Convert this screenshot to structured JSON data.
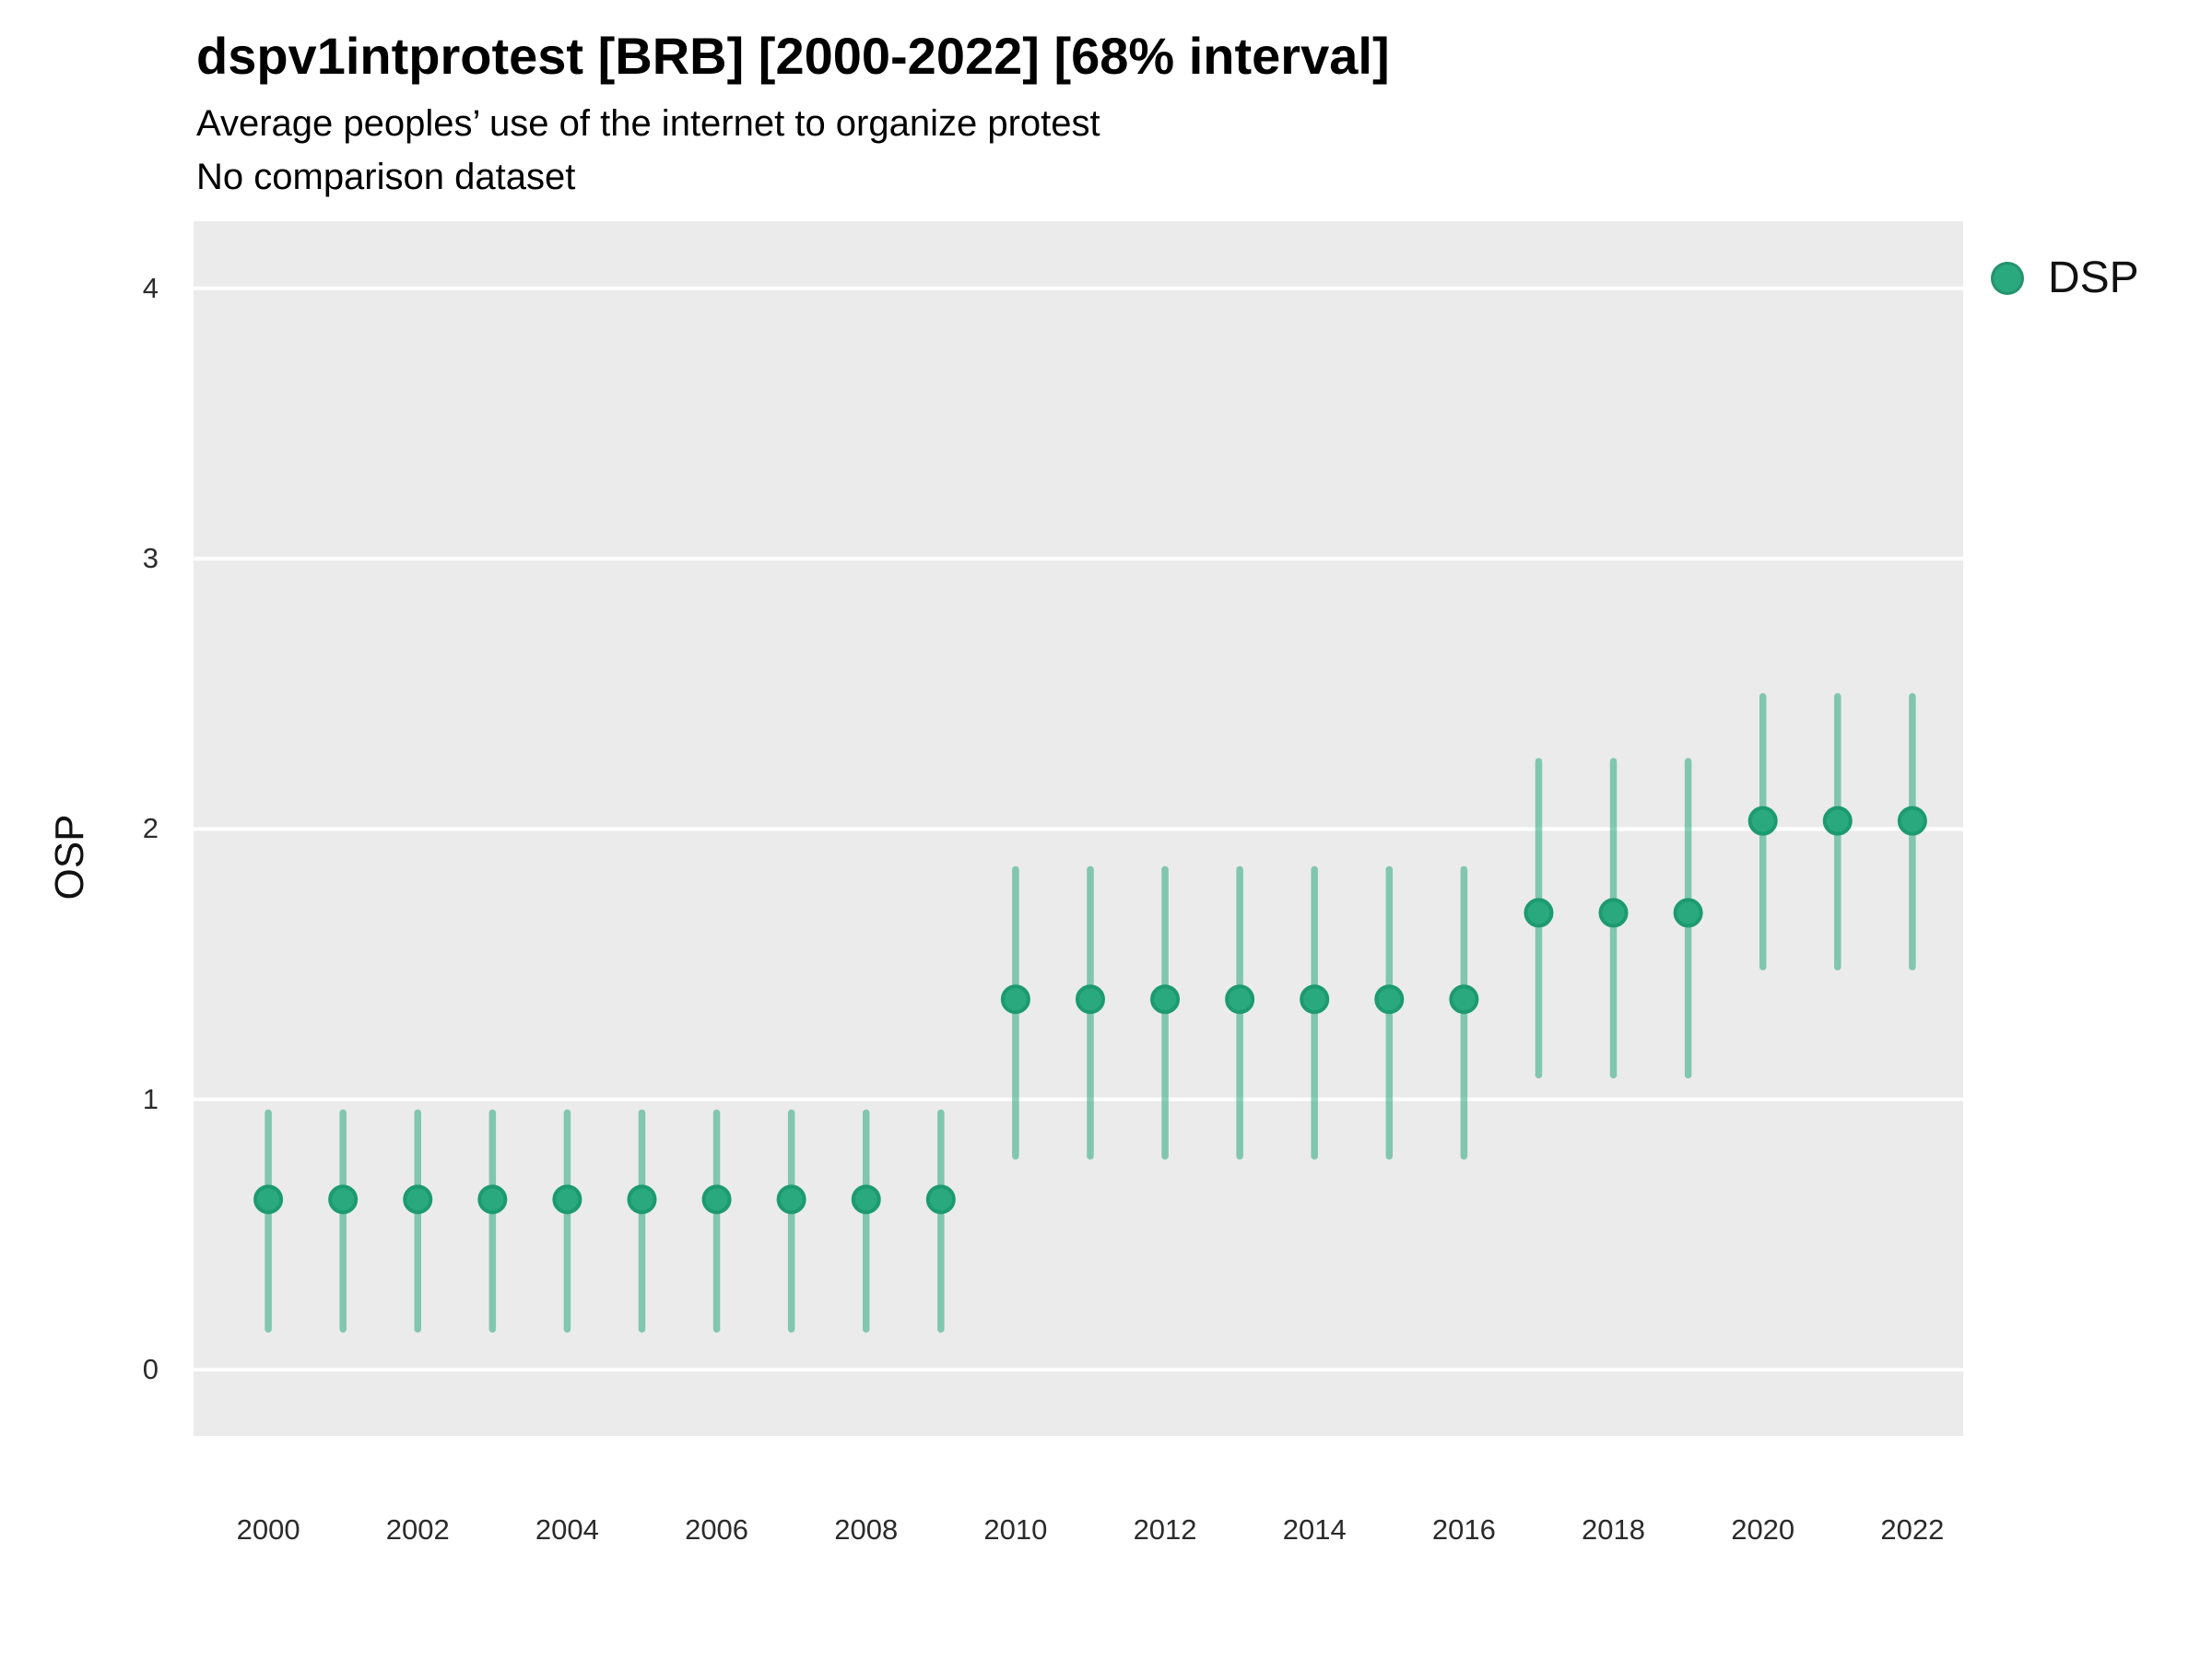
{
  "header": {
    "title": "dspv1intprotest [BRB] [2000-2022] [68% interval]",
    "subtitle": "Average peoples’ use of the internet to organize protest",
    "note": "No comparison dataset"
  },
  "legend": {
    "items": [
      {
        "label": "DSP",
        "color": "#2AA87E"
      }
    ]
  },
  "chart_data": {
    "type": "scatter",
    "title": "dspv1intprotest [BRB] [2000-2022] [68% interval]",
    "subtitle": "Average peoples’ use of the internet to organize protest",
    "note": "No comparison dataset",
    "interval_label": "68% interval",
    "country_code": "BRB",
    "xlabel": "",
    "ylabel": "OSP",
    "legend_position": "right",
    "grid": "major-horizontal-only",
    "panel_bg": "#EBEBEB",
    "grid_color": "#FFFFFF",
    "point_color": "#2AA87E",
    "point_stroke_color": "#1C9A70",
    "interval_color": "rgba(42,168,126,0.55)",
    "xticks": [
      2000,
      2002,
      2004,
      2006,
      2008,
      2010,
      2012,
      2014,
      2016,
      2018,
      2020,
      2022
    ],
    "yticks": [
      0,
      1,
      2,
      3,
      4
    ],
    "xlim": [
      1999.0,
      2022.68
    ],
    "ylim": [
      -0.245,
      4.248
    ],
    "series": [
      {
        "name": "DSP",
        "x": [
          2000,
          2001,
          2002,
          2003,
          2004,
          2005,
          2006,
          2007,
          2008,
          2009,
          2010,
          2011,
          2012,
          2013,
          2014,
          2015,
          2016,
          2017,
          2018,
          2019,
          2020,
          2021,
          2022
        ],
        "estimate": [
          0.63,
          0.63,
          0.63,
          0.63,
          0.63,
          0.63,
          0.63,
          0.63,
          0.63,
          0.63,
          1.37,
          1.37,
          1.37,
          1.37,
          1.37,
          1.37,
          1.37,
          1.69,
          1.69,
          1.69,
          2.03,
          2.03,
          2.03
        ],
        "lower": [
          0.15,
          0.15,
          0.15,
          0.15,
          0.15,
          0.15,
          0.15,
          0.15,
          0.15,
          0.15,
          0.79,
          0.79,
          0.79,
          0.79,
          0.79,
          0.79,
          0.79,
          1.09,
          1.09,
          1.09,
          1.49,
          1.49,
          1.49
        ],
        "upper": [
          0.95,
          0.95,
          0.95,
          0.95,
          0.95,
          0.95,
          0.95,
          0.95,
          0.95,
          0.95,
          1.85,
          1.85,
          1.85,
          1.85,
          1.85,
          1.85,
          1.85,
          2.25,
          2.25,
          2.25,
          2.49,
          2.49,
          2.49
        ]
      }
    ]
  }
}
